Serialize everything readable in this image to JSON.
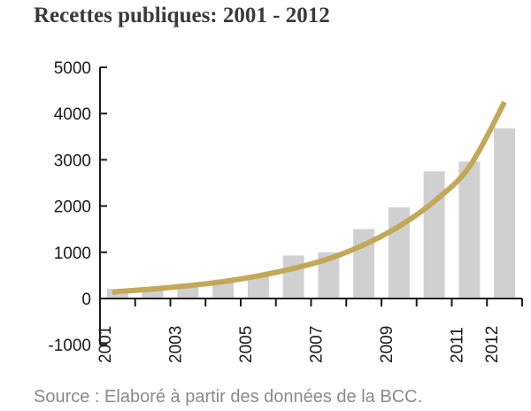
{
  "title": "Recettes publiques: 2001 - 2012",
  "source": "Source : Elaboré à partir des données de la BCC.",
  "colors": {
    "bar": "#d0d0d0",
    "curve": "#c2a857",
    "axis": "#1a1a1a",
    "text": "#3a3a3a"
  },
  "chart_data": {
    "type": "bar",
    "title": "Recettes publiques: 2001 - 2012",
    "xlabel": "",
    "ylabel": "",
    "categories": [
      "2001",
      "2002",
      "2003",
      "2004",
      "2005",
      "2006",
      "2007",
      "2008",
      "2009",
      "2010",
      "2011",
      "2012"
    ],
    "x_tick_labels": [
      "2001",
      "",
      "2003",
      "",
      "2005",
      "",
      "2007",
      "",
      "2009",
      "",
      "2011",
      "2012"
    ],
    "series": [
      {
        "values": [
          210,
          250,
          320,
          410,
          480,
          930,
          1000,
          1500,
          1970,
          2750,
          2960,
          3680
        ]
      }
    ],
    "trend_curve": {
      "type": "exponential",
      "values": [
        150,
        205,
        275,
        365,
        490,
        650,
        860,
        1160,
        1560,
        2100,
        2850,
        4250
      ]
    },
    "ylim": [
      -1000,
      5000
    ],
    "y_ticks": [
      -1000,
      0,
      1000,
      2000,
      3000,
      4000,
      5000
    ],
    "grid": false,
    "legend": "none"
  }
}
